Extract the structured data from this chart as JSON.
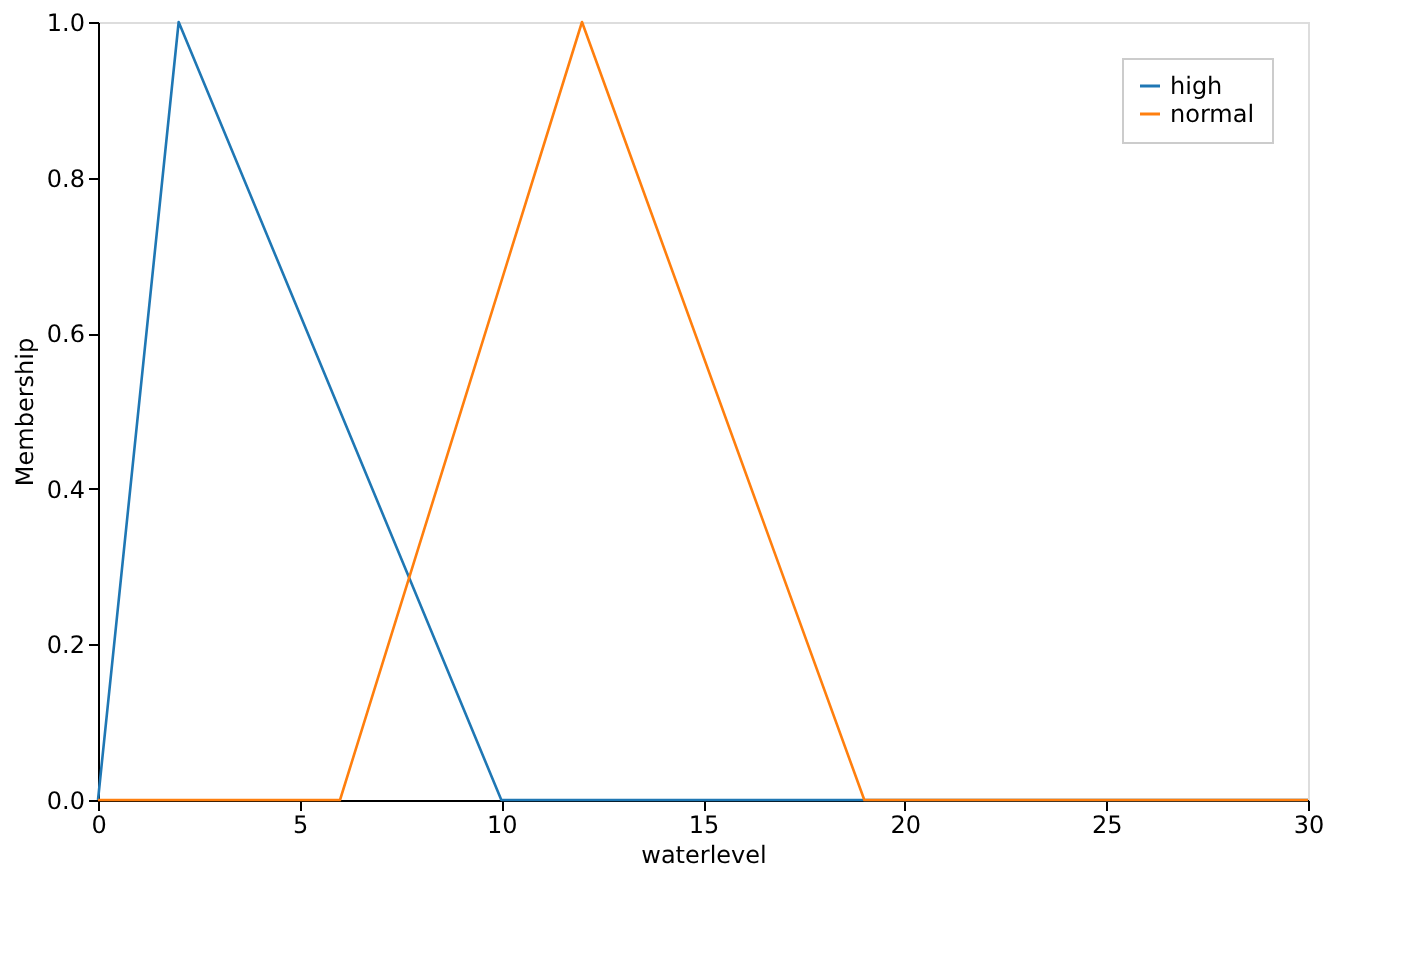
{
  "chart_data": {
    "type": "line",
    "xlabel": "waterlevel",
    "ylabel": "Membership",
    "series": [
      {
        "name": "high",
        "color": "#1f77b4",
        "x": [
          0,
          2,
          10,
          30
        ],
        "values": [
          0,
          1,
          0,
          0
        ]
      },
      {
        "name": "normal",
        "color": "#ff7f0e",
        "x": [
          0,
          6,
          12,
          19,
          30
        ],
        "values": [
          0,
          0,
          1,
          0,
          0
        ]
      }
    ],
    "xlim": [
      0,
      30
    ],
    "xticks": [
      0,
      5,
      10,
      15,
      20,
      25,
      30
    ],
    "ylim": [
      0,
      1
    ],
    "yticks": [
      {
        "value": 0,
        "label": "0.0"
      },
      {
        "value": 0.2,
        "label": "0.2"
      },
      {
        "value": 0.4,
        "label": "0.4"
      },
      {
        "value": 0.6,
        "label": "0.6"
      },
      {
        "value": 0.8,
        "label": "0.8"
      },
      {
        "value": 1,
        "label": "1.0"
      }
    ],
    "grid": false,
    "legend": "top right",
    "marker": "none",
    "line_style": "solid"
  }
}
